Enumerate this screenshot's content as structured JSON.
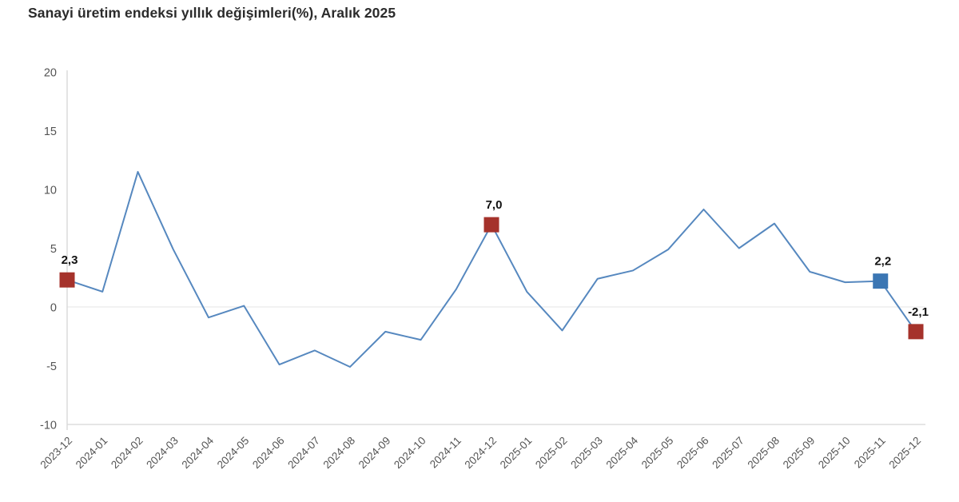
{
  "colors": {
    "background": "#ffffff",
    "title_text": "#2b2b2b",
    "axis_text": "#545454",
    "axis_line": "#d6d6d6",
    "zero_line": "#ebebeb",
    "label_text": "#111111"
  },
  "chart_data": {
    "type": "line",
    "title": "Sanayi üretim endeksi yıllık değişimleri(%), Aralık 2025",
    "xlabel": "",
    "ylabel": "",
    "x": [
      "2023-12",
      "2024-01",
      "2024-02",
      "2024-03",
      "2024-04",
      "2024-05",
      "2024-06",
      "2024-07",
      "2024-08",
      "2024-09",
      "2024-10",
      "2024-11",
      "2024-12",
      "2025-01",
      "2025-02",
      "2025-03",
      "2025-04",
      "2025-05",
      "2025-06",
      "2025-07",
      "2025-08",
      "2025-09",
      "2025-10",
      "2025-11",
      "2025-12"
    ],
    "values": [
      2.3,
      1.3,
      11.5,
      4.9,
      -0.9,
      0.1,
      -4.9,
      -3.7,
      -5.1,
      -2.1,
      -2.8,
      1.5,
      7.0,
      1.3,
      -2.0,
      2.4,
      3.1,
      4.9,
      8.3,
      5.0,
      7.1,
      3.0,
      2.1,
      2.2,
      -2.1
    ],
    "ylim": [
      -10,
      20
    ],
    "y_ticks": [
      20,
      15,
      10,
      5,
      0,
      -5,
      -10
    ],
    "grid": "single-light-gridline-at-zero",
    "legend": "none",
    "line_color": "#5688bf",
    "annotated_points": [
      {
        "x": "2023-12",
        "value": 2.3,
        "label": "2,3",
        "marker_color": "#a5322b"
      },
      {
        "x": "2024-12",
        "value": 7.0,
        "label": "7,0",
        "marker_color": "#a5322b"
      },
      {
        "x": "2025-11",
        "value": 2.2,
        "label": "2,2",
        "marker_color": "#3b76b3"
      },
      {
        "x": "2025-12",
        "value": -2.1,
        "label": "-2,1",
        "marker_color": "#a5322b"
      }
    ]
  }
}
